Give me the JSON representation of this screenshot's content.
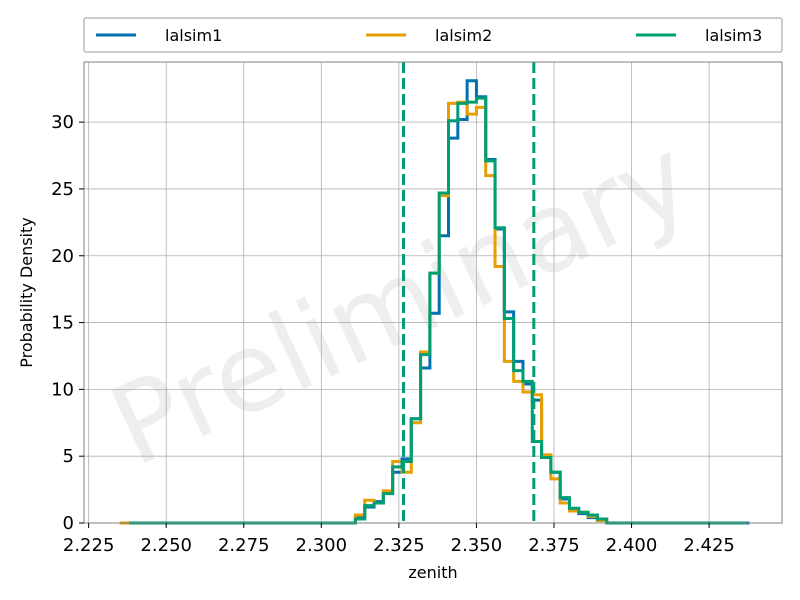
{
  "chart_data": {
    "type": "histogram",
    "watermark": "Preliminary",
    "xlabel": "zenith",
    "ylabel": "Probability Density",
    "xlim": [
      2.2235,
      2.4485
    ],
    "ylim": [
      0,
      34.5
    ],
    "xticks": [
      2.225,
      2.25,
      2.275,
      2.3,
      2.325,
      2.35,
      2.375,
      2.4,
      2.425
    ],
    "xtick_labels": [
      "2.225",
      "2.250",
      "2.275",
      "2.300",
      "2.325",
      "2.350",
      "2.375",
      "2.400",
      "2.425"
    ],
    "yticks": [
      0,
      5,
      10,
      15,
      20,
      25,
      30
    ],
    "ytick_labels": [
      "0",
      "5",
      "10",
      "15",
      "20",
      "25",
      "30"
    ],
    "grid": true,
    "legend_position": "top, outside plot, 3 columns",
    "bin_edges": [
      2.311,
      2.314,
      2.317,
      2.32,
      2.323,
      2.326,
      2.329,
      2.332,
      2.335,
      2.338,
      2.341,
      2.344,
      2.347,
      2.35,
      2.353,
      2.356,
      2.359,
      2.362,
      2.365,
      2.368,
      2.371,
      2.374,
      2.377,
      2.38,
      2.383,
      2.386,
      2.389,
      2.392
    ],
    "series": [
      {
        "name": "lalsim1",
        "color": "#0072b2",
        "tail_min": 2.24,
        "tail_max": 2.438,
        "values": [
          0.5,
          1.2,
          1.6,
          2.3,
          3.8,
          4.8,
          7.8,
          11.6,
          15.7,
          21.5,
          28.8,
          30.2,
          33.1,
          31.9,
          27.2,
          22.0,
          15.8,
          12.1,
          10.4,
          9.2,
          5.0,
          3.8,
          1.8,
          0.9,
          0.7,
          0.4,
          0.2
        ]
      },
      {
        "name": "lalsim2",
        "color": "#e69f00",
        "tail_min": 2.235,
        "tail_max": 2.422,
        "values": [
          0.6,
          1.7,
          1.5,
          2.4,
          4.6,
          3.8,
          7.5,
          12.8,
          18.7,
          24.5,
          31.4,
          31.5,
          30.6,
          31.1,
          26.0,
          19.2,
          12.1,
          10.6,
          9.8,
          9.6,
          5.1,
          3.3,
          1.5,
          0.9,
          0.8,
          0.5,
          0.2
        ]
      },
      {
        "name": "lalsim3",
        "color": "#009e73",
        "tail_min": 2.238,
        "tail_max": 2.437,
        "values": [
          0.3,
          1.3,
          1.5,
          2.2,
          4.2,
          4.6,
          7.8,
          12.6,
          18.7,
          24.7,
          30.1,
          31.4,
          31.5,
          31.8,
          27.1,
          22.1,
          15.3,
          11.4,
          10.6,
          6.1,
          4.9,
          3.8,
          1.9,
          1.1,
          0.8,
          0.6,
          0.3
        ]
      }
    ],
    "vlines": [
      {
        "x": 2.3265,
        "color": "#009e73",
        "style": "dashed"
      },
      {
        "x": 2.3685,
        "color": "#009e73",
        "style": "dashed"
      }
    ]
  }
}
